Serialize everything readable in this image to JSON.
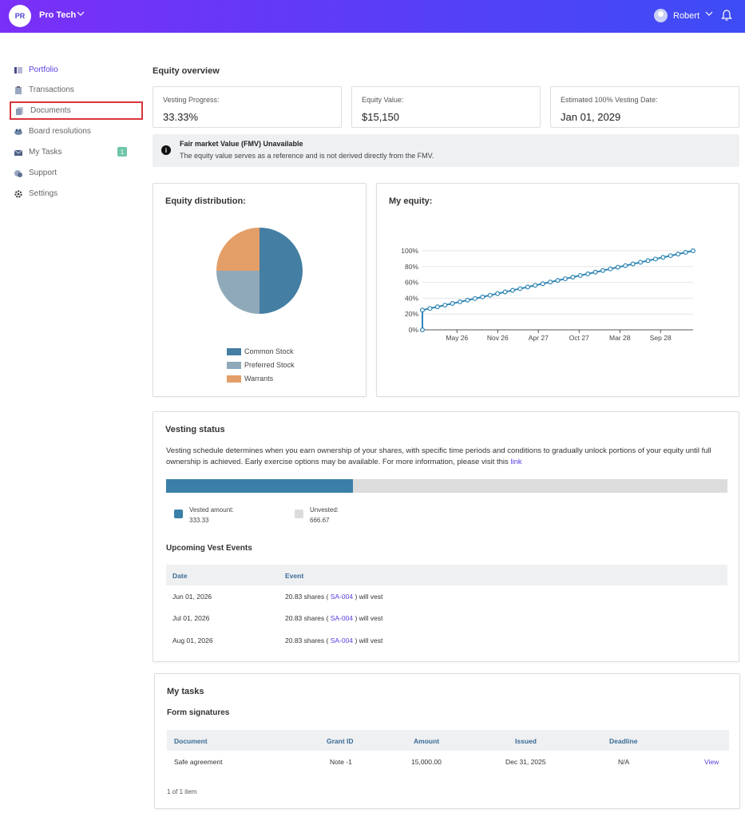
{
  "topbar": {
    "org_initials": "PR",
    "org_name": "Pro Tech",
    "user_name": "Robert"
  },
  "sidebar": {
    "items": [
      {
        "label": "Portfolio",
        "icon": "portfolio-icon",
        "active": true
      },
      {
        "label": "Transactions",
        "icon": "clipboard-icon"
      },
      {
        "label": "Documents",
        "icon": "documents-icon",
        "highlighted": true
      },
      {
        "label": "Board resolutions",
        "icon": "board-icon"
      },
      {
        "label": "My Tasks",
        "icon": "envelope-icon",
        "badge": "1"
      },
      {
        "label": "Support",
        "icon": "support-icon"
      },
      {
        "label": "Settings",
        "icon": "gear-icon"
      }
    ]
  },
  "overview": {
    "title": "Equity overview",
    "cards": [
      {
        "label": "Vesting Progress:",
        "value": "33.33%"
      },
      {
        "label": "Equity Value:",
        "value": "$15,150"
      },
      {
        "label": "Estimated 100% Vesting Date:",
        "value": "Jan 01, 2029"
      }
    ],
    "notice_title": "Fair market Value (FMV) Unavailable",
    "notice_text": "The equity value serves as a reference and is not derived directly from the FMV."
  },
  "colors": {
    "common": "#447ea3",
    "preferred": "#8fa9b9",
    "warrants": "#e49e68",
    "line": "#2f86b6",
    "accent": "#5b3de0"
  },
  "chart_data": [
    {
      "type": "pie",
      "title": "Equity distribution:",
      "labels": [
        "Common Stock",
        "Preferred Stock",
        "Warrants"
      ],
      "values": [
        50,
        25,
        25
      ],
      "legend": "bottom"
    },
    {
      "type": "line",
      "title": "My equity:",
      "x_ticks": [
        "May 26",
        "Nov 26",
        "Apr 27",
        "Oct 27",
        "Mar 28",
        "Sep 28"
      ],
      "y_ticks": [
        "0%",
        "20%",
        "40%",
        "60%",
        "80%",
        "100%"
      ],
      "ylim": [
        0,
        100
      ],
      "grid": true,
      "series": [
        {
          "values": [
            0,
            25,
            27.08,
            29.17,
            31.25,
            33.33,
            35.42,
            37.5,
            39.58,
            41.67,
            43.75,
            45.83,
            47.92,
            50,
            52.08,
            54.17,
            56.25,
            58.33,
            60.42,
            62.5,
            64.58,
            66.67,
            68.75,
            70.83,
            72.92,
            75,
            77.08,
            79.17,
            81.25,
            83.33,
            85.42,
            87.5,
            89.58,
            91.67,
            93.75,
            95.83,
            97.92,
            100
          ]
        }
      ]
    }
  ],
  "vesting": {
    "title": "Vesting status",
    "desc": "Vesting schedule determines when you earn ownership of your shares, with specific time periods and conditions to gradually unlock portions of your equity until full ownership is achieved. Early exercise options may be available. For more information, please visit this",
    "link_text": "link",
    "progress": 0.3333,
    "vested_label": "Vested amount:",
    "vested_value": "333.33",
    "unvested_label": "Unvested:",
    "unvested_value": "666.67",
    "upcoming_title": "Upcoming Vest Events",
    "headers": [
      "Date",
      "Event"
    ],
    "rows": [
      {
        "date": "Jun 01, 2026",
        "pre": "20.83 shares (",
        "grant": "SA-004",
        "post": ") will vest"
      },
      {
        "date": "Jul 01, 2026",
        "pre": "20.83 shares (",
        "grant": "SA-004",
        "post": ") will vest"
      },
      {
        "date": "Aug 01, 2026",
        "pre": "20.83 shares (",
        "grant": "SA-004",
        "post": ") will vest"
      }
    ]
  },
  "tasks": {
    "title": "My tasks",
    "subtitle": "Form signatures",
    "headers": [
      "Document",
      "Grant ID",
      "Amount",
      "Issued",
      "Deadline"
    ],
    "rows": [
      {
        "document": "Safe agreement",
        "grant_id": "Note -1",
        "amount": "15,000.00",
        "issued": "Dec 31, 2025",
        "deadline": "N/A",
        "action": "View"
      }
    ],
    "footer": "1 of 1 item"
  }
}
